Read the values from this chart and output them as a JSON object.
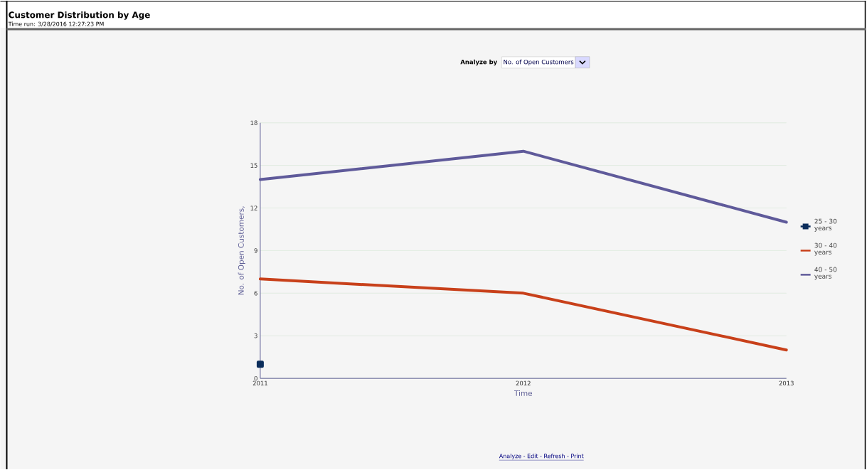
{
  "chart_data": {
    "type": "line",
    "title": "Customer Distribution by Age",
    "subtitle": "Time run: 3/28/2016 12:27:23 PM",
    "xlabel": "Time",
    "ylabel": "No. of Open Customers,",
    "categories": [
      "2011",
      "2012",
      "2013"
    ],
    "series": [
      {
        "name": "25 - 30 years",
        "color": "#0b2d5b",
        "values": [
          1,
          null,
          null
        ],
        "marker": "square"
      },
      {
        "name": "30 - 40 years",
        "color": "#c8401a",
        "values": [
          7,
          6,
          2
        ],
        "marker": "none"
      },
      {
        "name": "40 - 50 years",
        "color": "#5f5a9a",
        "values": [
          14,
          16,
          11
        ],
        "marker": "none"
      }
    ],
    "ylim": [
      0,
      18
    ],
    "yticks": [
      0,
      3,
      6,
      9,
      12,
      15,
      18
    ],
    "grid": "y",
    "legend": "right",
    "annotations": [
      "Analyze by",
      "No. of Open Customers",
      "Analyze - Edit - Refresh - Print"
    ]
  }
}
